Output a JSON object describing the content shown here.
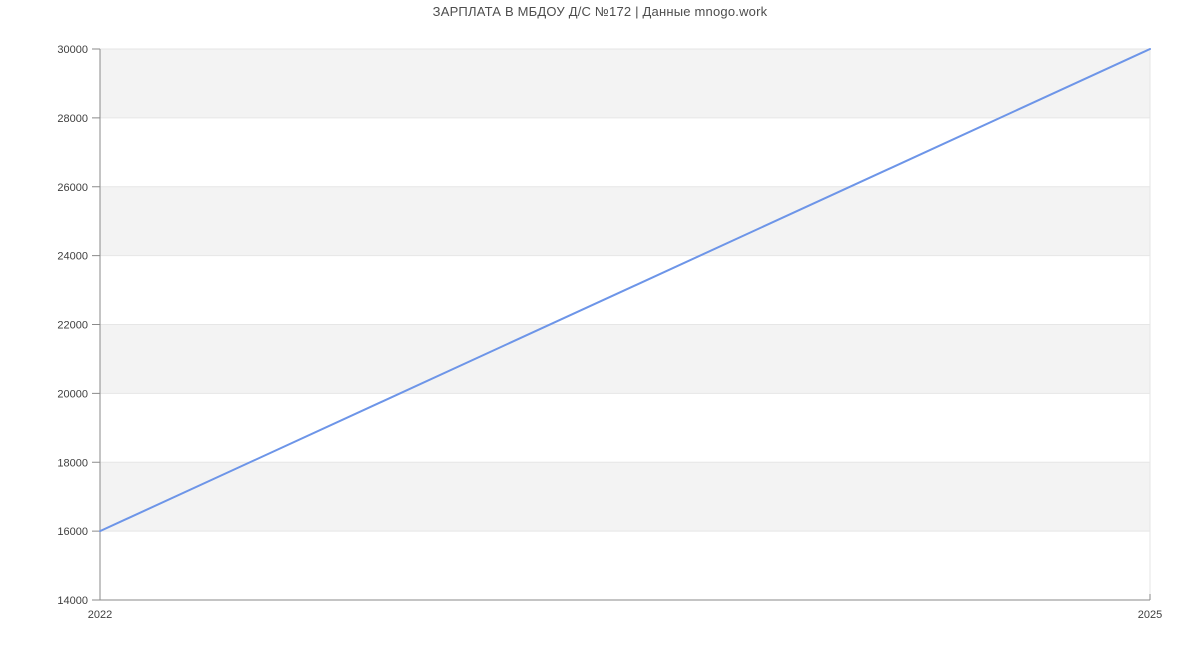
{
  "title": "ЗАРПЛАТА В МБДОУ Д/С №172 | Данные mnogo.work",
  "chart_data": {
    "type": "line",
    "title": "ЗАРПЛАТА В МБДОУ Д/С №172 | Данные mnogo.work",
    "x": [
      2022,
      2025
    ],
    "series": [
      {
        "name": "",
        "values": [
          16000,
          30000
        ]
      }
    ],
    "xlabel": "",
    "ylabel": "",
    "xlim": [
      2022,
      2025
    ],
    "ylim": [
      14000,
      30000
    ],
    "ytick_step": 2000,
    "xtick_labels": [
      "2022",
      "2025"
    ],
    "ytick_labels": [
      "14000",
      "16000",
      "18000",
      "20000",
      "22000",
      "24000",
      "26000",
      "28000",
      "30000"
    ],
    "grid": true,
    "alternate_bands": true,
    "legend_position": "none"
  },
  "colors": {
    "line": "#6d95e8",
    "band": "#f3f3f3",
    "gridline": "#e6e6e6",
    "axis": "#8a8a8a",
    "tick_label": "#3f3f3f",
    "title": "#4d4d4d",
    "background": "#ffffff"
  }
}
